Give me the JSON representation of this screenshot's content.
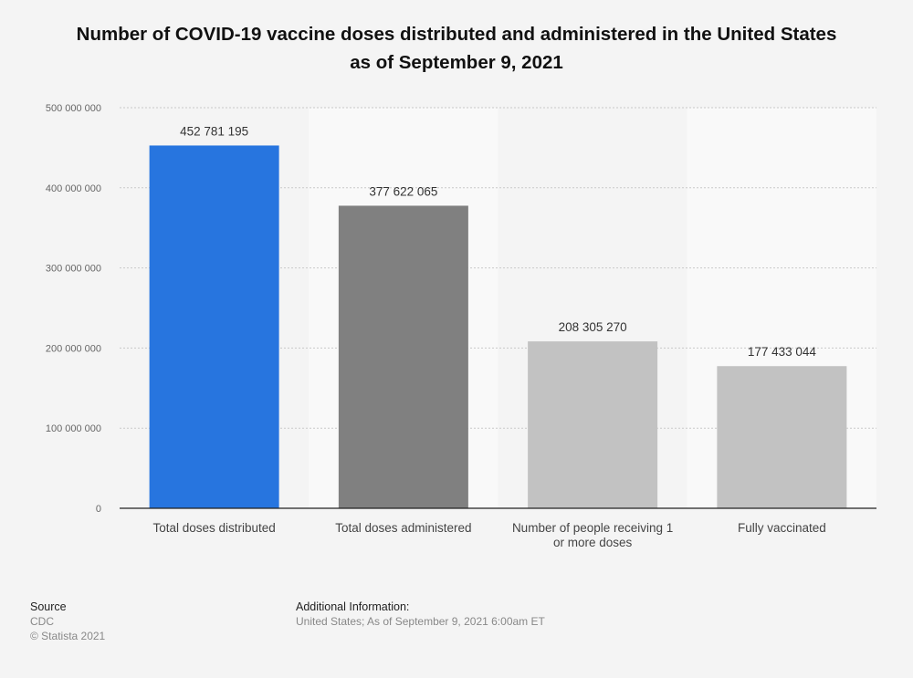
{
  "title_line1": "Number of COVID-19 vaccine doses distributed and administered in the United States",
  "title_line2": "as of September 9, 2021",
  "colors": {
    "background": "#f4f4f4",
    "band_alt": "#f9f9f9",
    "grid": "#c9c9c9",
    "axis": "#222222",
    "bar_1": "#2775df",
    "bar_2": "#808080",
    "bar_3": "#c2c2c2",
    "bar_4": "#c2c2c2"
  },
  "chart_data": {
    "type": "bar",
    "categories": [
      "Total doses distributed",
      "Total doses administered",
      "Number of people receiving 1 or more doses",
      "Fully vaccinated"
    ],
    "values": [
      452781195,
      377622065,
      208305270,
      177433044
    ],
    "value_labels": [
      "452 781 195",
      "377 622 065",
      "208 305 270",
      "177 433 044"
    ],
    "yticks": [
      0,
      100000000,
      200000000,
      300000000,
      400000000,
      500000000
    ],
    "ytick_labels": [
      "0",
      "100 000 000",
      "200 000 000",
      "300 000 000",
      "400 000 000",
      "500 000 000"
    ],
    "ylim": [
      0,
      500000000
    ],
    "grid": true,
    "legend": false
  },
  "footer": {
    "source_heading": "Source",
    "source_name": "CDC",
    "copyright": "© Statista 2021",
    "info_heading": "Additional Information:",
    "info_text": "United States; As of September 9, 2021 6:00am ET"
  }
}
